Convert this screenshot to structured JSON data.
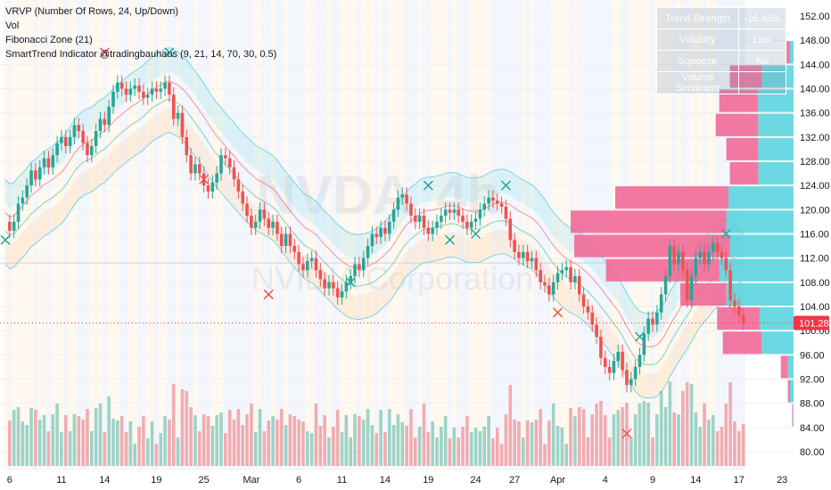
{
  "indicators": {
    "vrvp": "VRVP (Number Of Rows, 24, Up/Down)",
    "vol": "Vol",
    "fib": "Fibonacci Zone (21)",
    "smarttrend": "SmartTrend Indicator @tradingbauhaus (9, 21, 14, 70, 30, 0.5)"
  },
  "trend_table": [
    {
      "label": "Trend Strength",
      "value": "-16.45%"
    },
    {
      "label": "Volatility",
      "value": "Low"
    },
    {
      "label": "Squeeze",
      "value": "No"
    },
    {
      "label": "Volume Sentiment",
      "value": ""
    }
  ],
  "watermark": {
    "ticker": "NVDA",
    "interval": "4h",
    "name": "NVIDIA Corporation"
  },
  "colors": {
    "up": "#26a69a",
    "down": "#ef5350",
    "vp_up": "#52d1dc",
    "vp_down": "#f06292",
    "price_tag": "#f23645"
  },
  "chart_data": {
    "type": "candlestick",
    "y_axis": {
      "ticks": [
        152,
        148,
        144,
        140,
        136,
        132,
        128,
        124,
        120,
        116,
        112,
        108,
        104,
        100,
        96,
        92,
        88,
        84,
        80
      ],
      "labels": [
        "152.00",
        "148.00",
        "144.00",
        "140.00",
        "136.00",
        "132.00",
        "128.00",
        "124.00",
        "120.00",
        "116.00",
        "112.00",
        "108.00",
        "104.00",
        "100.00",
        "96.00",
        "92.00",
        "88.00",
        "84.00",
        "80.00"
      ],
      "range": [
        78,
        154
      ]
    },
    "x_axis": {
      "labels": [
        "6",
        "11",
        "14",
        "19",
        "25",
        "Mar",
        "6",
        "11",
        "14",
        "19",
        "24",
        "27",
        "Apr",
        "4",
        "9",
        "14",
        "17",
        "23"
      ],
      "index": [
        1,
        13,
        23,
        35,
        46,
        57,
        68,
        78,
        88,
        98,
        109,
        118,
        128,
        139,
        150,
        160,
        170,
        180
      ]
    },
    "last_price": {
      "value": 101.28,
      "label": "101.28"
    },
    "closes": [
      118,
      116.5,
      118,
      121,
      122,
      124,
      126.5,
      125,
      127,
      128.5,
      127,
      129,
      131,
      132,
      130.5,
      132,
      134,
      133,
      131,
      129,
      130.5,
      133,
      135,
      134,
      137,
      139.5,
      141,
      140,
      139,
      140,
      140.5,
      139.5,
      138.5,
      139,
      140,
      139.5,
      140,
      141,
      139,
      135,
      136,
      132,
      129,
      126,
      127.5,
      126,
      124,
      123,
      124.5,
      126,
      129,
      128.5,
      127,
      125,
      123,
      121,
      119,
      117,
      118,
      120,
      118.5,
      117,
      118,
      116,
      114,
      116,
      114,
      113,
      111,
      110,
      111.5,
      112,
      110,
      108.5,
      107,
      108,
      107,
      105.5,
      106.5,
      108,
      109,
      111,
      110,
      112,
      114,
      116,
      115.5,
      117,
      116,
      118,
      120,
      122,
      122.5,
      121,
      119,
      118,
      119,
      117,
      116,
      117,
      118,
      119,
      120,
      119.5,
      120,
      119,
      118,
      117,
      118,
      118.5,
      120,
      121,
      122,
      121.5,
      121,
      120.5,
      118.5,
      115,
      113,
      112,
      113,
      111.5,
      112,
      110,
      108,
      107.5,
      106,
      108,
      109.5,
      110,
      110.5,
      108,
      109,
      106,
      104,
      103,
      101,
      99,
      95.5,
      94,
      93,
      95,
      96.5,
      93.5,
      91,
      92,
      94,
      96,
      99.5,
      102,
      101,
      103,
      106,
      109,
      114,
      111,
      113,
      110,
      105,
      109,
      112,
      113,
      111,
      113,
      114.5,
      113,
      112,
      110,
      105,
      104,
      102.5,
      101.28
    ],
    "volume_profile": {
      "price_lows": [
        80,
        84,
        88,
        92,
        96,
        100,
        104,
        108,
        112,
        116,
        120,
        124,
        128,
        132,
        136,
        140,
        144
      ],
      "up": [
        0,
        1,
        5,
        8,
        45,
        48,
        95,
        105,
        90,
        95,
        92,
        50,
        50,
        50,
        50,
        45,
        5
      ],
      "down": [
        0,
        1,
        3,
        10,
        55,
        60,
        65,
        160,
        220,
        220,
        160,
        40,
        45,
        60,
        55,
        45,
        5
      ]
    }
  }
}
